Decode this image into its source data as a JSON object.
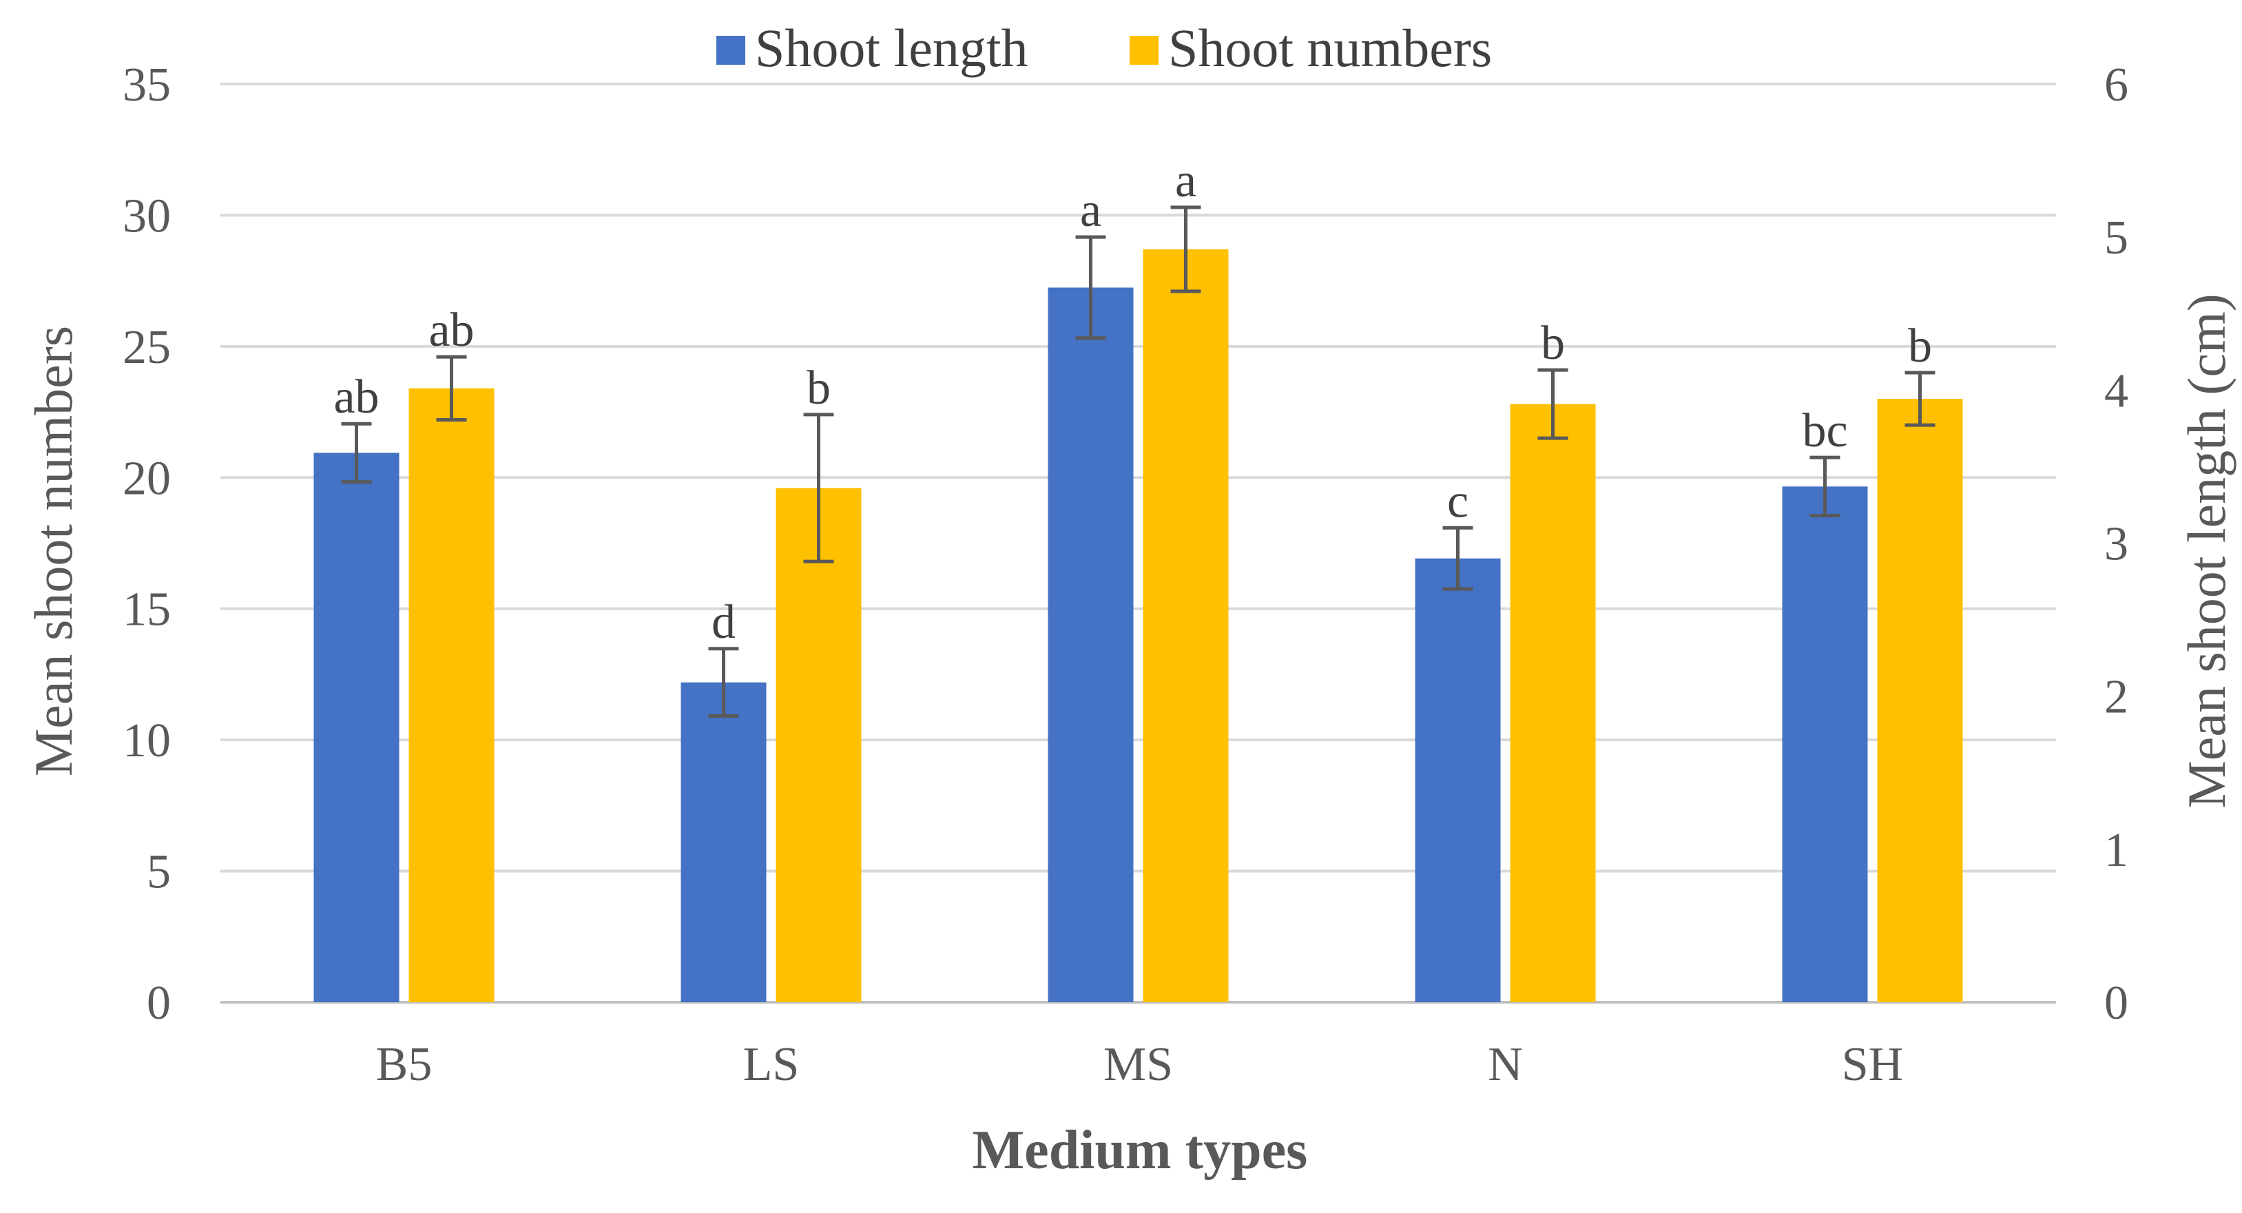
{
  "chart_data": {
    "type": "bar",
    "categories": [
      "B5",
      "LS",
      "MS",
      "N",
      "SH"
    ],
    "xlabel": "Medium types",
    "ylabel_left": "Mean shoot numbers",
    "ylabel_right": "Mean shoot length (cm)",
    "left_axis": {
      "range": [
        0,
        35
      ],
      "ticks": [
        0,
        5,
        10,
        15,
        20,
        25,
        30,
        35
      ]
    },
    "right_axis": {
      "range": [
        0,
        6
      ],
      "ticks": [
        0,
        1,
        2,
        3,
        4,
        5,
        6
      ]
    },
    "gridlines": true,
    "legend_position": "top-center",
    "series": [
      {
        "name": "Shoot length",
        "axis": "right",
        "color": "#4472C4",
        "values": [
          3.59,
          2.09,
          4.67,
          2.9,
          3.37
        ],
        "errors": [
          0.19,
          0.22,
          0.33,
          0.2,
          0.19
        ],
        "labels": [
          "ab",
          "d",
          "a",
          "c",
          "bc"
        ]
      },
      {
        "name": "Shoot numbers",
        "axis": "left",
        "color": "#FFC000",
        "values": [
          23.4,
          19.6,
          28.7,
          22.8,
          23.0
        ],
        "errors": [
          1.2,
          2.8,
          1.6,
          1.3,
          1.0
        ],
        "labels": [
          "ab",
          "b",
          "a",
          "b",
          "b"
        ]
      }
    ]
  }
}
